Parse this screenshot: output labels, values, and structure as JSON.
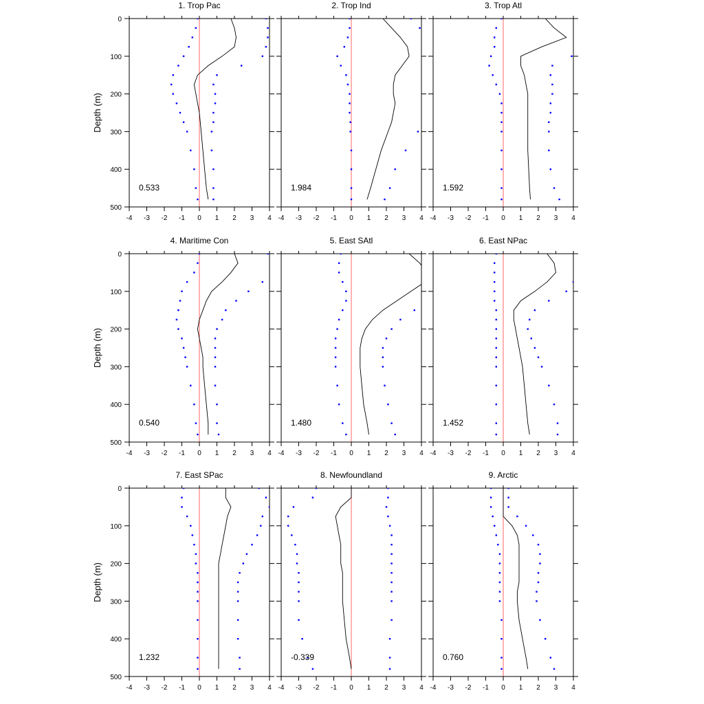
{
  "figure": {
    "ylabel": "Depth (m)",
    "xticks": [
      -4,
      -3,
      -2,
      -1,
      0,
      1,
      2,
      3,
      4
    ],
    "yticks": [
      0,
      100,
      200,
      300,
      400,
      500
    ],
    "colors": {
      "dots": "#0000ff",
      "line": "#000000",
      "zero_line": "#ff6666"
    }
  },
  "chart_data": [
    {
      "type": "line",
      "title": "1. Trop Pac",
      "annotation": "0.533",
      "xlim": [
        -4,
        4
      ],
      "ylim": [
        500,
        0
      ],
      "grid": false,
      "depth": [
        0,
        25,
        50,
        75,
        100,
        125,
        150,
        175,
        200,
        225,
        250,
        275,
        300,
        350,
        400,
        450,
        480
      ],
      "series": [
        {
          "role": "line",
          "x": [
            1.8,
            2.0,
            2.1,
            2.0,
            1.3,
            0.5,
            -0.1,
            -0.3,
            -0.2,
            -0.1,
            0.0,
            0.05,
            0.1,
            0.2,
            0.3,
            0.4,
            0.5
          ]
        },
        {
          "role": "dots",
          "x": [
            -0.1,
            -0.2,
            -0.4,
            -0.6,
            -0.9,
            -1.2,
            -1.5,
            -1.6,
            -1.5,
            -1.3,
            -1.1,
            -0.9,
            -0.7,
            -0.5,
            -0.3,
            -0.2,
            -0.1
          ]
        },
        {
          "role": "dots",
          "x": [
            3.8,
            3.9,
            3.9,
            3.8,
            3.6,
            2.4,
            1.0,
            0.8,
            0.9,
            0.9,
            0.8,
            0.8,
            0.7,
            0.7,
            0.8,
            0.8,
            0.8
          ]
        }
      ]
    },
    {
      "type": "line",
      "title": "2. Trop Ind",
      "annotation": "1.984",
      "xlim": [
        -4,
        4
      ],
      "ylim": [
        500,
        0
      ],
      "grid": false,
      "depth": [
        0,
        25,
        50,
        75,
        100,
        125,
        150,
        175,
        200,
        225,
        250,
        275,
        300,
        350,
        400,
        450,
        480
      ],
      "series": [
        {
          "role": "line",
          "x": [
            1.8,
            2.3,
            2.8,
            3.2,
            3.3,
            2.9,
            2.5,
            2.4,
            2.4,
            2.5,
            2.4,
            2.3,
            2.1,
            1.7,
            1.4,
            1.1,
            0.9
          ]
        },
        {
          "role": "dots",
          "x": [
            -0.1,
            -0.1,
            -0.2,
            -0.4,
            -0.8,
            -0.6,
            -0.3,
            -0.2,
            -0.1,
            -0.1,
            -0.1,
            -0.05,
            -0.05,
            0.0,
            0.0,
            0.0,
            0.0
          ]
        },
        {
          "role": "dots",
          "x": [
            3.4,
            3.9,
            4.2,
            4.3,
            4.3,
            4.3,
            4.3,
            4.3,
            4.3,
            4.3,
            4.3,
            4.2,
            3.8,
            3.1,
            2.5,
            2.2,
            1.9
          ]
        }
      ]
    },
    {
      "type": "line",
      "title": "3. Trop Atl",
      "annotation": "1.592",
      "xlim": [
        -4,
        4
      ],
      "ylim": [
        500,
        0
      ],
      "grid": false,
      "depth": [
        0,
        25,
        50,
        75,
        100,
        125,
        150,
        175,
        200,
        225,
        250,
        275,
        300,
        350,
        400,
        450,
        480
      ],
      "series": [
        {
          "role": "line",
          "x": [
            2.4,
            2.9,
            3.6,
            2.2,
            1.0,
            1.0,
            1.2,
            1.3,
            1.4,
            1.4,
            1.4,
            1.4,
            1.4,
            1.4,
            1.45,
            1.5,
            1.55
          ]
        },
        {
          "role": "dots",
          "x": [
            -0.1,
            -0.4,
            -0.5,
            -0.5,
            -0.7,
            -0.8,
            -0.6,
            -0.4,
            -0.2,
            -0.1,
            -0.1,
            -0.1,
            -0.1,
            -0.1,
            -0.1,
            -0.1,
            -0.1
          ]
        },
        {
          "role": "dots",
          "x": [
            4.2,
            4.2,
            4.3,
            4.2,
            3.9,
            2.8,
            2.7,
            2.8,
            2.8,
            2.7,
            2.7,
            2.6,
            2.6,
            2.6,
            2.7,
            2.9,
            3.2
          ]
        }
      ]
    },
    {
      "type": "line",
      "title": "4. Maritime Con",
      "annotation": "0.540",
      "xlim": [
        -4,
        4
      ],
      "ylim": [
        500,
        0
      ],
      "grid": false,
      "depth": [
        0,
        25,
        50,
        75,
        100,
        125,
        150,
        175,
        200,
        225,
        250,
        275,
        300,
        350,
        400,
        450,
        480
      ],
      "series": [
        {
          "role": "line",
          "x": [
            2.0,
            2.2,
            1.8,
            1.3,
            0.7,
            0.4,
            0.2,
            0.0,
            -0.1,
            0.0,
            0.1,
            0.2,
            0.2,
            0.3,
            0.4,
            0.5,
            0.5
          ]
        },
        {
          "role": "dots",
          "x": [
            0.0,
            -0.1,
            -0.3,
            -0.7,
            -1.0,
            -1.1,
            -1.2,
            -1.3,
            -1.2,
            -1.0,
            -0.9,
            -0.8,
            -0.7,
            -0.5,
            -0.3,
            -0.2,
            -0.1
          ]
        },
        {
          "role": "dots",
          "x": [
            3.9,
            4.1,
            4.3,
            3.6,
            2.8,
            2.1,
            1.5,
            1.3,
            1.0,
            0.9,
            0.9,
            0.9,
            0.9,
            0.9,
            1.0,
            1.0,
            1.1
          ]
        }
      ]
    },
    {
      "type": "line",
      "title": "5. East SAtl",
      "annotation": "1.480",
      "xlim": [
        -4,
        4
      ],
      "ylim": [
        500,
        0
      ],
      "grid": false,
      "depth": [
        0,
        25,
        50,
        75,
        100,
        125,
        150,
        175,
        200,
        225,
        250,
        275,
        300,
        350,
        400,
        450,
        480
      ],
      "series": [
        {
          "role": "line",
          "x": [
            3.3,
            3.9,
            4.3,
            4.2,
            3.4,
            2.6,
            1.8,
            1.2,
            0.8,
            0.6,
            0.5,
            0.5,
            0.5,
            0.6,
            0.7,
            0.9,
            1.0
          ]
        },
        {
          "role": "dots",
          "x": [
            -0.6,
            -0.7,
            -0.7,
            -0.5,
            -0.3,
            -0.3,
            -0.5,
            -0.7,
            -0.8,
            -0.9,
            -0.9,
            -0.9,
            -0.9,
            -0.8,
            -0.7,
            -0.5,
            -0.3
          ]
        },
        {
          "role": "dots",
          "x": [
            4.3,
            4.3,
            4.3,
            4.3,
            4.3,
            4.3,
            3.6,
            2.8,
            2.3,
            2.0,
            1.8,
            1.8,
            1.8,
            1.9,
            2.1,
            2.3,
            2.5
          ]
        }
      ]
    },
    {
      "type": "line",
      "title": "6. East NPac",
      "annotation": "1.452",
      "xlim": [
        -4,
        4
      ],
      "ylim": [
        500,
        0
      ],
      "grid": false,
      "depth": [
        0,
        25,
        50,
        75,
        100,
        125,
        150,
        175,
        200,
        225,
        250,
        275,
        300,
        350,
        400,
        450,
        480
      ],
      "series": [
        {
          "role": "line",
          "x": [
            2.5,
            2.9,
            3.0,
            2.5,
            1.8,
            1.0,
            0.6,
            0.6,
            0.7,
            0.8,
            0.9,
            1.0,
            1.1,
            1.2,
            1.3,
            1.4,
            1.5
          ]
        },
        {
          "role": "dots",
          "x": [
            -0.4,
            -0.5,
            -0.5,
            -0.5,
            -0.5,
            -0.5,
            -0.4,
            -0.4,
            -0.4,
            -0.4,
            -0.4,
            -0.4,
            -0.4,
            -0.4,
            -0.4,
            -0.4,
            -0.4
          ]
        },
        {
          "role": "dots",
          "x": [
            4.2,
            4.2,
            4.2,
            4.0,
            3.6,
            2.6,
            1.8,
            1.5,
            1.4,
            1.6,
            1.8,
            2.0,
            2.2,
            2.6,
            2.9,
            3.1,
            3.1
          ]
        }
      ]
    },
    {
      "type": "line",
      "title": "7. East SPac",
      "annotation": "1.232",
      "xlim": [
        -4,
        4
      ],
      "ylim": [
        500,
        0
      ],
      "grid": false,
      "depth": [
        0,
        25,
        50,
        75,
        100,
        125,
        150,
        175,
        200,
        225,
        250,
        275,
        300,
        350,
        400,
        450,
        480
      ],
      "series": [
        {
          "role": "line",
          "x": [
            1.5,
            1.5,
            1.8,
            1.6,
            1.5,
            1.4,
            1.3,
            1.2,
            1.1,
            1.1,
            1.1,
            1.1,
            1.1,
            1.1,
            1.1,
            1.1,
            1.1
          ]
        },
        {
          "role": "dots",
          "x": [
            -0.9,
            -1.0,
            -1.0,
            -0.7,
            -0.5,
            -0.4,
            -0.3,
            -0.2,
            -0.2,
            -0.1,
            -0.1,
            -0.1,
            -0.1,
            -0.1,
            -0.1,
            -0.1,
            -0.1
          ]
        },
        {
          "role": "dots",
          "x": [
            3.4,
            3.8,
            4.0,
            3.6,
            3.5,
            3.3,
            3.0,
            2.7,
            2.5,
            2.3,
            2.2,
            2.2,
            2.2,
            2.2,
            2.2,
            2.3,
            2.3
          ]
        }
      ]
    },
    {
      "type": "line",
      "title": "8. Newfoundland",
      "annotation": "-0.339",
      "xlim": [
        -4,
        4
      ],
      "ylim": [
        500,
        0
      ],
      "grid": false,
      "depth": [
        0,
        25,
        50,
        75,
        100,
        125,
        150,
        175,
        200,
        225,
        250,
        275,
        300,
        350,
        400,
        450,
        480
      ],
      "series": [
        {
          "role": "line",
          "x": [
            0.0,
            0.0,
            -0.6,
            -0.9,
            -0.8,
            -0.7,
            -0.6,
            -0.6,
            -0.6,
            -0.5,
            -0.5,
            -0.5,
            -0.5,
            -0.4,
            -0.3,
            -0.1,
            0.0
          ]
        },
        {
          "role": "dots",
          "x": [
            -2.0,
            -2.2,
            -3.3,
            -3.6,
            -3.6,
            -3.4,
            -3.2,
            -3.1,
            -3.1,
            -3.0,
            -3.0,
            -3.0,
            -3.0,
            -3.0,
            -2.8,
            -2.5,
            -2.2
          ]
        },
        {
          "role": "dots",
          "x": [
            2.1,
            2.1,
            2.0,
            2.1,
            2.2,
            2.3,
            2.3,
            2.3,
            2.3,
            2.3,
            2.3,
            2.3,
            2.3,
            2.3,
            2.2,
            2.2,
            2.2
          ]
        }
      ]
    },
    {
      "type": "line",
      "title": "9. Arctic",
      "annotation": "0.760",
      "xlim": [
        -4,
        4
      ],
      "ylim": [
        500,
        0
      ],
      "grid": false,
      "depth": [
        0,
        25,
        50,
        75,
        100,
        125,
        150,
        175,
        200,
        225,
        250,
        275,
        300,
        350,
        400,
        450,
        480
      ],
      "series": [
        {
          "role": "line",
          "x": [
            0.0,
            0.0,
            0.0,
            0.0,
            0.5,
            0.8,
            0.9,
            0.9,
            0.9,
            0.9,
            0.9,
            0.8,
            0.8,
            0.9,
            1.1,
            1.3,
            1.4
          ]
        },
        {
          "role": "dots",
          "x": [
            -0.7,
            -0.7,
            -0.7,
            -0.6,
            -0.5,
            -0.4,
            -0.3,
            -0.2,
            -0.2,
            -0.2,
            -0.2,
            -0.2,
            -0.2,
            -0.1,
            -0.1,
            -0.1,
            -0.1
          ]
        },
        {
          "role": "dots",
          "x": [
            0.3,
            0.3,
            0.3,
            0.8,
            1.3,
            1.7,
            2.0,
            2.1,
            2.1,
            2.0,
            2.0,
            1.9,
            1.9,
            2.1,
            2.4,
            2.7,
            2.9
          ]
        }
      ]
    }
  ]
}
